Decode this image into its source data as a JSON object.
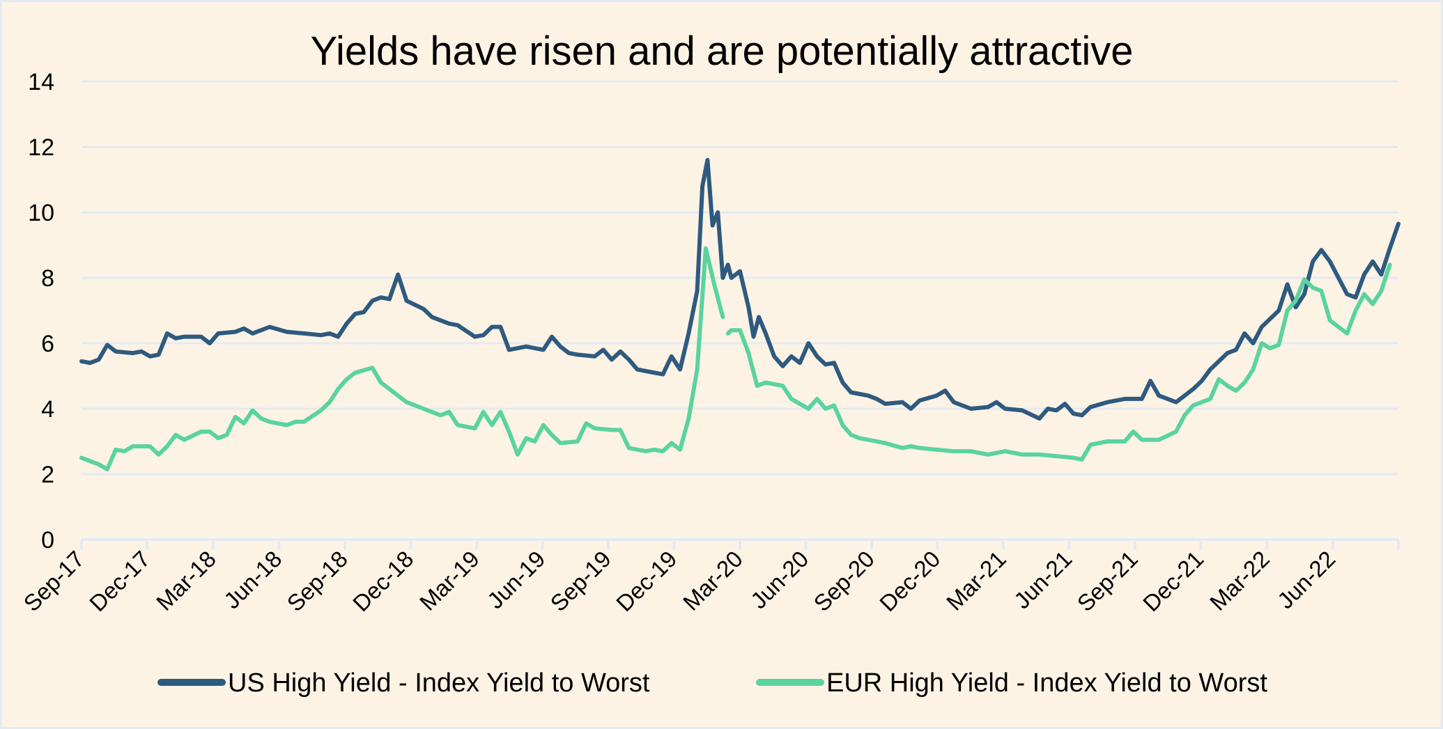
{
  "chart_data": {
    "type": "line",
    "title": "Yields have risen and are potentially attractive",
    "xlabel": "",
    "ylabel": "",
    "ylim": [
      0,
      14
    ],
    "yticks": [
      "0",
      "2",
      "4",
      "6",
      "8",
      "10",
      "12",
      "14"
    ],
    "x_unit": "months since Sep-17",
    "xlim": [
      0,
      60
    ],
    "xtick_labels": [
      "Sep-17",
      "Dec-17",
      "Mar-18",
      "Jun-18",
      "Sep-18",
      "Dec-18",
      "Mar-19",
      "Jun-19",
      "Sep-19",
      "Dec-19",
      "Mar-20",
      "Jun-20",
      "Sep-20",
      "Dec-20",
      "Mar-21",
      "Jun-21",
      "Sep-21",
      "Dec-21",
      "Mar-22",
      "Jun-22"
    ],
    "grid": true,
    "legend_position": "bottom",
    "colors": {
      "us": "#2E5A7F",
      "eur": "#5AD39F"
    },
    "series": [
      {
        "name": "US High Yield - Index Yield to Worst",
        "points": [
          [
            0,
            5.45
          ],
          [
            0.39,
            5.4
          ],
          [
            0.78,
            5.5
          ],
          [
            1.17,
            5.95
          ],
          [
            1.56,
            5.75
          ],
          [
            2.34,
            5.7
          ],
          [
            2.73,
            5.75
          ],
          [
            3.12,
            5.6
          ],
          [
            3.51,
            5.65
          ],
          [
            3.9,
            6.3
          ],
          [
            4.29,
            6.15
          ],
          [
            4.68,
            6.2
          ],
          [
            5.45,
            6.2
          ],
          [
            5.84,
            6.0
          ],
          [
            6.23,
            6.3
          ],
          [
            7.01,
            6.35
          ],
          [
            7.4,
            6.45
          ],
          [
            7.79,
            6.3
          ],
          [
            8.57,
            6.5
          ],
          [
            9.35,
            6.35
          ],
          [
            10.13,
            6.3
          ],
          [
            10.91,
            6.25
          ],
          [
            11.3,
            6.3
          ],
          [
            11.69,
            6.2
          ],
          [
            12.08,
            6.6
          ],
          [
            12.47,
            6.9
          ],
          [
            12.86,
            6.95
          ],
          [
            13.25,
            7.3
          ],
          [
            13.64,
            7.4
          ],
          [
            14.03,
            7.35
          ],
          [
            14.42,
            8.1
          ],
          [
            14.81,
            7.3
          ],
          [
            15.58,
            7.05
          ],
          [
            15.97,
            6.8
          ],
          [
            16.36,
            6.7
          ],
          [
            16.75,
            6.6
          ],
          [
            17.14,
            6.55
          ],
          [
            17.92,
            6.2
          ],
          [
            18.31,
            6.25
          ],
          [
            18.7,
            6.5
          ],
          [
            19.09,
            6.5
          ],
          [
            19.48,
            5.8
          ],
          [
            20.26,
            5.9
          ],
          [
            21.04,
            5.8
          ],
          [
            21.43,
            6.2
          ],
          [
            21.82,
            5.9
          ],
          [
            22.21,
            5.7
          ],
          [
            22.6,
            5.65
          ],
          [
            23.38,
            5.6
          ],
          [
            23.77,
            5.8
          ],
          [
            24.16,
            5.5
          ],
          [
            24.55,
            5.75
          ],
          [
            24.94,
            5.5
          ],
          [
            25.32,
            5.2
          ],
          [
            25.71,
            5.15
          ],
          [
            26.49,
            5.05
          ],
          [
            26.88,
            5.6
          ],
          [
            27.27,
            5.2
          ],
          [
            27.66,
            6.3
          ],
          [
            28.05,
            7.6
          ],
          [
            28.29,
            10.8
          ],
          [
            28.52,
            11.6
          ],
          [
            28.75,
            9.6
          ],
          [
            28.99,
            10.0
          ],
          [
            29.22,
            8.0
          ],
          [
            29.45,
            8.4
          ],
          [
            29.61,
            8.0
          ],
          [
            30.0,
            8.2
          ],
          [
            30.39,
            7.1
          ],
          [
            30.62,
            6.2
          ],
          [
            30.86,
            6.8
          ],
          [
            31.17,
            6.3
          ],
          [
            31.56,
            5.6
          ],
          [
            31.95,
            5.3
          ],
          [
            32.34,
            5.6
          ],
          [
            32.73,
            5.4
          ],
          [
            33.12,
            6.0
          ],
          [
            33.51,
            5.6
          ],
          [
            33.9,
            5.35
          ],
          [
            34.29,
            5.4
          ],
          [
            34.68,
            4.8
          ],
          [
            35.06,
            4.5
          ],
          [
            35.84,
            4.4
          ],
          [
            36.23,
            4.3
          ],
          [
            36.62,
            4.15
          ],
          [
            37.4,
            4.2
          ],
          [
            37.79,
            4.0
          ],
          [
            38.18,
            4.25
          ],
          [
            38.96,
            4.4
          ],
          [
            39.35,
            4.55
          ],
          [
            39.74,
            4.2
          ],
          [
            40.52,
            4.0
          ],
          [
            41.3,
            4.05
          ],
          [
            41.69,
            4.2
          ],
          [
            42.08,
            4.0
          ],
          [
            42.86,
            3.95
          ],
          [
            43.64,
            3.7
          ],
          [
            44.03,
            4.0
          ],
          [
            44.42,
            3.95
          ],
          [
            44.81,
            4.15
          ],
          [
            45.19,
            3.85
          ],
          [
            45.58,
            3.8
          ],
          [
            45.97,
            4.05
          ],
          [
            46.75,
            4.2
          ],
          [
            47.53,
            4.3
          ],
          [
            48.31,
            4.3
          ],
          [
            48.7,
            4.85
          ],
          [
            49.09,
            4.4
          ],
          [
            49.87,
            4.2
          ],
          [
            50.65,
            4.6
          ],
          [
            51.04,
            4.85
          ],
          [
            51.43,
            5.2
          ],
          [
            52.21,
            5.7
          ],
          [
            52.6,
            5.8
          ],
          [
            52.99,
            6.3
          ],
          [
            53.38,
            6.0
          ],
          [
            53.77,
            6.5
          ],
          [
            54.55,
            7.0
          ],
          [
            54.94,
            7.8
          ],
          [
            55.32,
            7.1
          ],
          [
            55.71,
            7.5
          ],
          [
            56.1,
            8.5
          ],
          [
            56.49,
            8.85
          ],
          [
            56.88,
            8.5
          ],
          [
            57.27,
            8.0
          ],
          [
            57.66,
            7.5
          ],
          [
            58.05,
            7.4
          ],
          [
            58.44,
            8.1
          ],
          [
            58.83,
            8.5
          ],
          [
            59.22,
            8.1
          ],
          [
            59.61,
            8.9
          ],
          [
            60.0,
            9.65
          ]
        ]
      },
      {
        "name": "EUR High Yield - Index Yield to Worst",
        "points": [
          [
            0,
            2.5
          ],
          [
            0.39,
            2.4
          ],
          [
            0.78,
            2.3
          ],
          [
            1.17,
            2.15
          ],
          [
            1.56,
            2.75
          ],
          [
            1.95,
            2.7
          ],
          [
            2.34,
            2.85
          ],
          [
            3.12,
            2.85
          ],
          [
            3.51,
            2.6
          ],
          [
            3.9,
            2.85
          ],
          [
            4.29,
            3.2
          ],
          [
            4.68,
            3.05
          ],
          [
            5.45,
            3.3
          ],
          [
            5.84,
            3.3
          ],
          [
            6.23,
            3.1
          ],
          [
            6.62,
            3.2
          ],
          [
            7.01,
            3.75
          ],
          [
            7.4,
            3.55
          ],
          [
            7.79,
            3.95
          ],
          [
            8.18,
            3.7
          ],
          [
            8.57,
            3.6
          ],
          [
            9.35,
            3.5
          ],
          [
            9.74,
            3.6
          ],
          [
            10.13,
            3.6
          ],
          [
            10.91,
            3.95
          ],
          [
            11.3,
            4.2
          ],
          [
            11.69,
            4.6
          ],
          [
            12.08,
            4.9
          ],
          [
            12.47,
            5.1
          ],
          [
            13.25,
            5.25
          ],
          [
            13.64,
            4.8
          ],
          [
            14.03,
            4.6
          ],
          [
            14.81,
            4.2
          ],
          [
            15.58,
            4.0
          ],
          [
            16.36,
            3.8
          ],
          [
            16.75,
            3.9
          ],
          [
            17.14,
            3.5
          ],
          [
            17.92,
            3.4
          ],
          [
            18.31,
            3.9
          ],
          [
            18.7,
            3.5
          ],
          [
            19.09,
            3.9
          ],
          [
            19.48,
            3.3
          ],
          [
            19.87,
            2.6
          ],
          [
            20.26,
            3.1
          ],
          [
            20.65,
            3.0
          ],
          [
            21.04,
            3.5
          ],
          [
            21.43,
            3.2
          ],
          [
            21.82,
            2.95
          ],
          [
            22.6,
            3.0
          ],
          [
            22.99,
            3.55
          ],
          [
            23.38,
            3.4
          ],
          [
            24.16,
            3.35
          ],
          [
            24.55,
            3.35
          ],
          [
            24.94,
            2.8
          ],
          [
            25.71,
            2.7
          ],
          [
            26.1,
            2.75
          ],
          [
            26.49,
            2.7
          ],
          [
            26.88,
            2.95
          ],
          [
            27.27,
            2.75
          ],
          [
            27.66,
            3.7
          ],
          [
            28.05,
            5.2
          ],
          [
            28.44,
            8.9
          ],
          [
            28.83,
            7.8
          ],
          [
            29.22,
            6.8
          ],
          null,
          [
            29.45,
            6.3
          ],
          [
            29.61,
            6.4
          ],
          [
            30.0,
            6.4
          ],
          [
            30.39,
            5.7
          ],
          [
            30.78,
            4.7
          ],
          [
            31.17,
            4.8
          ],
          [
            31.95,
            4.7
          ],
          [
            32.34,
            4.3
          ],
          [
            32.73,
            4.15
          ],
          [
            33.12,
            4.0
          ],
          [
            33.51,
            4.3
          ],
          [
            33.9,
            4.0
          ],
          [
            34.29,
            4.1
          ],
          [
            34.68,
            3.5
          ],
          [
            35.06,
            3.2
          ],
          [
            35.45,
            3.1
          ],
          [
            35.84,
            3.05
          ],
          [
            36.62,
            2.95
          ],
          [
            37.4,
            2.8
          ],
          [
            37.79,
            2.85
          ],
          [
            38.18,
            2.8
          ],
          [
            38.96,
            2.75
          ],
          [
            39.74,
            2.7
          ],
          [
            40.52,
            2.7
          ],
          [
            41.3,
            2.6
          ],
          [
            42.08,
            2.7
          ],
          [
            42.86,
            2.6
          ],
          [
            43.64,
            2.6
          ],
          [
            44.42,
            2.55
          ],
          [
            45.19,
            2.5
          ],
          [
            45.58,
            2.45
          ],
          [
            45.97,
            2.9
          ],
          [
            46.75,
            3.0
          ],
          [
            47.14,
            3.0
          ],
          [
            47.53,
            3.0
          ],
          [
            47.92,
            3.3
          ],
          [
            48.31,
            3.05
          ],
          [
            49.09,
            3.05
          ],
          [
            49.87,
            3.3
          ],
          [
            50.26,
            3.8
          ],
          [
            50.65,
            4.1
          ],
          [
            51.43,
            4.3
          ],
          [
            51.82,
            4.9
          ],
          [
            52.21,
            4.7
          ],
          [
            52.6,
            4.55
          ],
          [
            52.99,
            4.8
          ],
          [
            53.38,
            5.2
          ],
          [
            53.77,
            6.0
          ],
          [
            54.16,
            5.85
          ],
          [
            54.55,
            5.95
          ],
          [
            54.94,
            7.0
          ],
          [
            55.32,
            7.3
          ],
          [
            55.71,
            7.95
          ],
          [
            56.1,
            7.7
          ],
          [
            56.49,
            7.6
          ],
          [
            56.88,
            6.7
          ],
          [
            57.27,
            6.5
          ],
          [
            57.66,
            6.3
          ],
          [
            58.05,
            7.0
          ],
          [
            58.44,
            7.5
          ],
          [
            58.83,
            7.2
          ],
          [
            59.22,
            7.6
          ],
          [
            59.61,
            8.4
          ]
        ]
      }
    ]
  }
}
